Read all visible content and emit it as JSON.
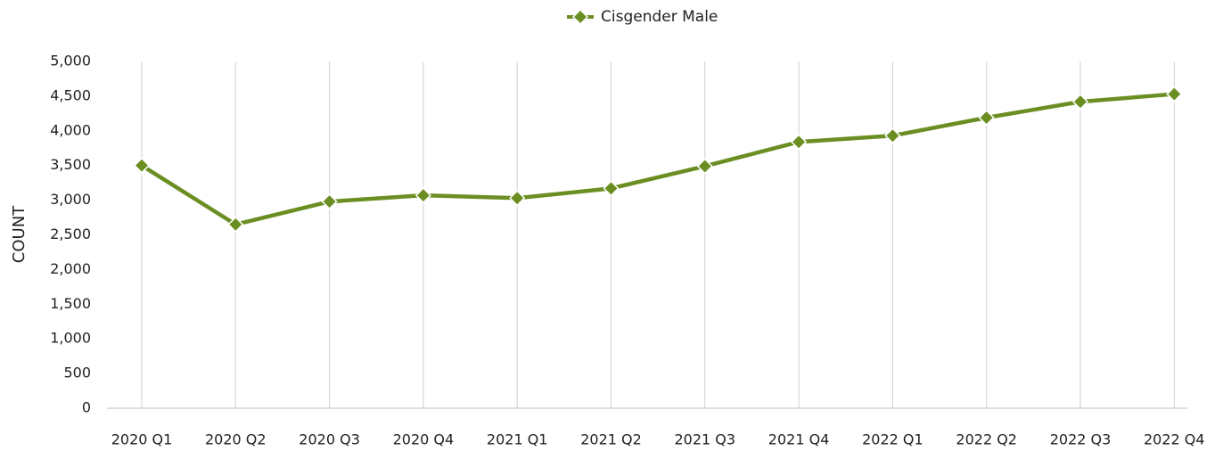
{
  "chart_data": {
    "type": "line",
    "y_label": "COUNT",
    "categories": [
      "2020 Q1",
      "2020 Q2",
      "2020 Q3",
      "2020 Q4",
      "2021 Q1",
      "2021 Q2",
      "2021 Q3",
      "2021 Q4",
      "2022 Q1",
      "2022 Q2",
      "2022 Q3",
      "2022 Q4"
    ],
    "series": [
      {
        "name": "Cisgender Male",
        "color": "#6b8e23",
        "values": [
          3500,
          2650,
          2980,
          3070,
          3030,
          3170,
          3490,
          3840,
          3930,
          4190,
          4420,
          4530
        ]
      }
    ],
    "ylim": [
      0,
      5000
    ],
    "yticks": [
      0,
      500,
      {
        "value": 1000,
        "label": "1,000"
      },
      {
        "value": 1500,
        "label": "1,500"
      },
      {
        "value": 2000,
        "label": "2,000"
      },
      {
        "value": 2500,
        "label": "2,500"
      },
      {
        "value": 3000,
        "label": "3,000"
      },
      {
        "value": 3500,
        "label": "3,500"
      },
      {
        "value": 4000,
        "label": "4,000"
      },
      {
        "value": 4500,
        "label": "4,500"
      },
      {
        "value": 5000,
        "label": "5,000"
      }
    ],
    "grid": "x",
    "legend": "top"
  }
}
